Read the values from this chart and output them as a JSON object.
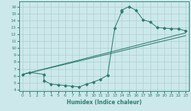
{
  "xlabel": "Humidex (Indice chaleur)",
  "xlim": [
    -0.5,
    23.5
  ],
  "ylim": [
    3.8,
    16.8
  ],
  "xticks": [
    0,
    1,
    2,
    3,
    4,
    5,
    6,
    7,
    8,
    9,
    10,
    11,
    12,
    13,
    14,
    15,
    16,
    17,
    18,
    19,
    20,
    21,
    22,
    23
  ],
  "yticks": [
    4,
    5,
    6,
    7,
    8,
    9,
    10,
    11,
    12,
    13,
    14,
    15,
    16
  ],
  "bg_color": "#cce8ea",
  "line_color": "#2e7d6e",
  "grid_color": "#aacdd0",
  "c1x": [
    0,
    1,
    3,
    3,
    4,
    5,
    6,
    7,
    8,
    9,
    10,
    11,
    12,
    13,
    14,
    14,
    15,
    16,
    17,
    18,
    19,
    20,
    21,
    22,
    23
  ],
  "c1y": [
    6.2,
    6.5,
    6.2,
    5.3,
    4.8,
    4.7,
    4.6,
    4.5,
    4.4,
    4.8,
    5.1,
    5.5,
    6.1,
    12.9,
    15.3,
    15.5,
    16.0,
    15.5,
    14.1,
    13.8,
    13.0,
    12.9,
    12.8,
    12.8,
    12.5
  ],
  "c2x": [
    0,
    23
  ],
  "c2y": [
    6.2,
    12.2
  ],
  "c3x": [
    0,
    23
  ],
  "c3y": [
    6.2,
    11.8
  ]
}
